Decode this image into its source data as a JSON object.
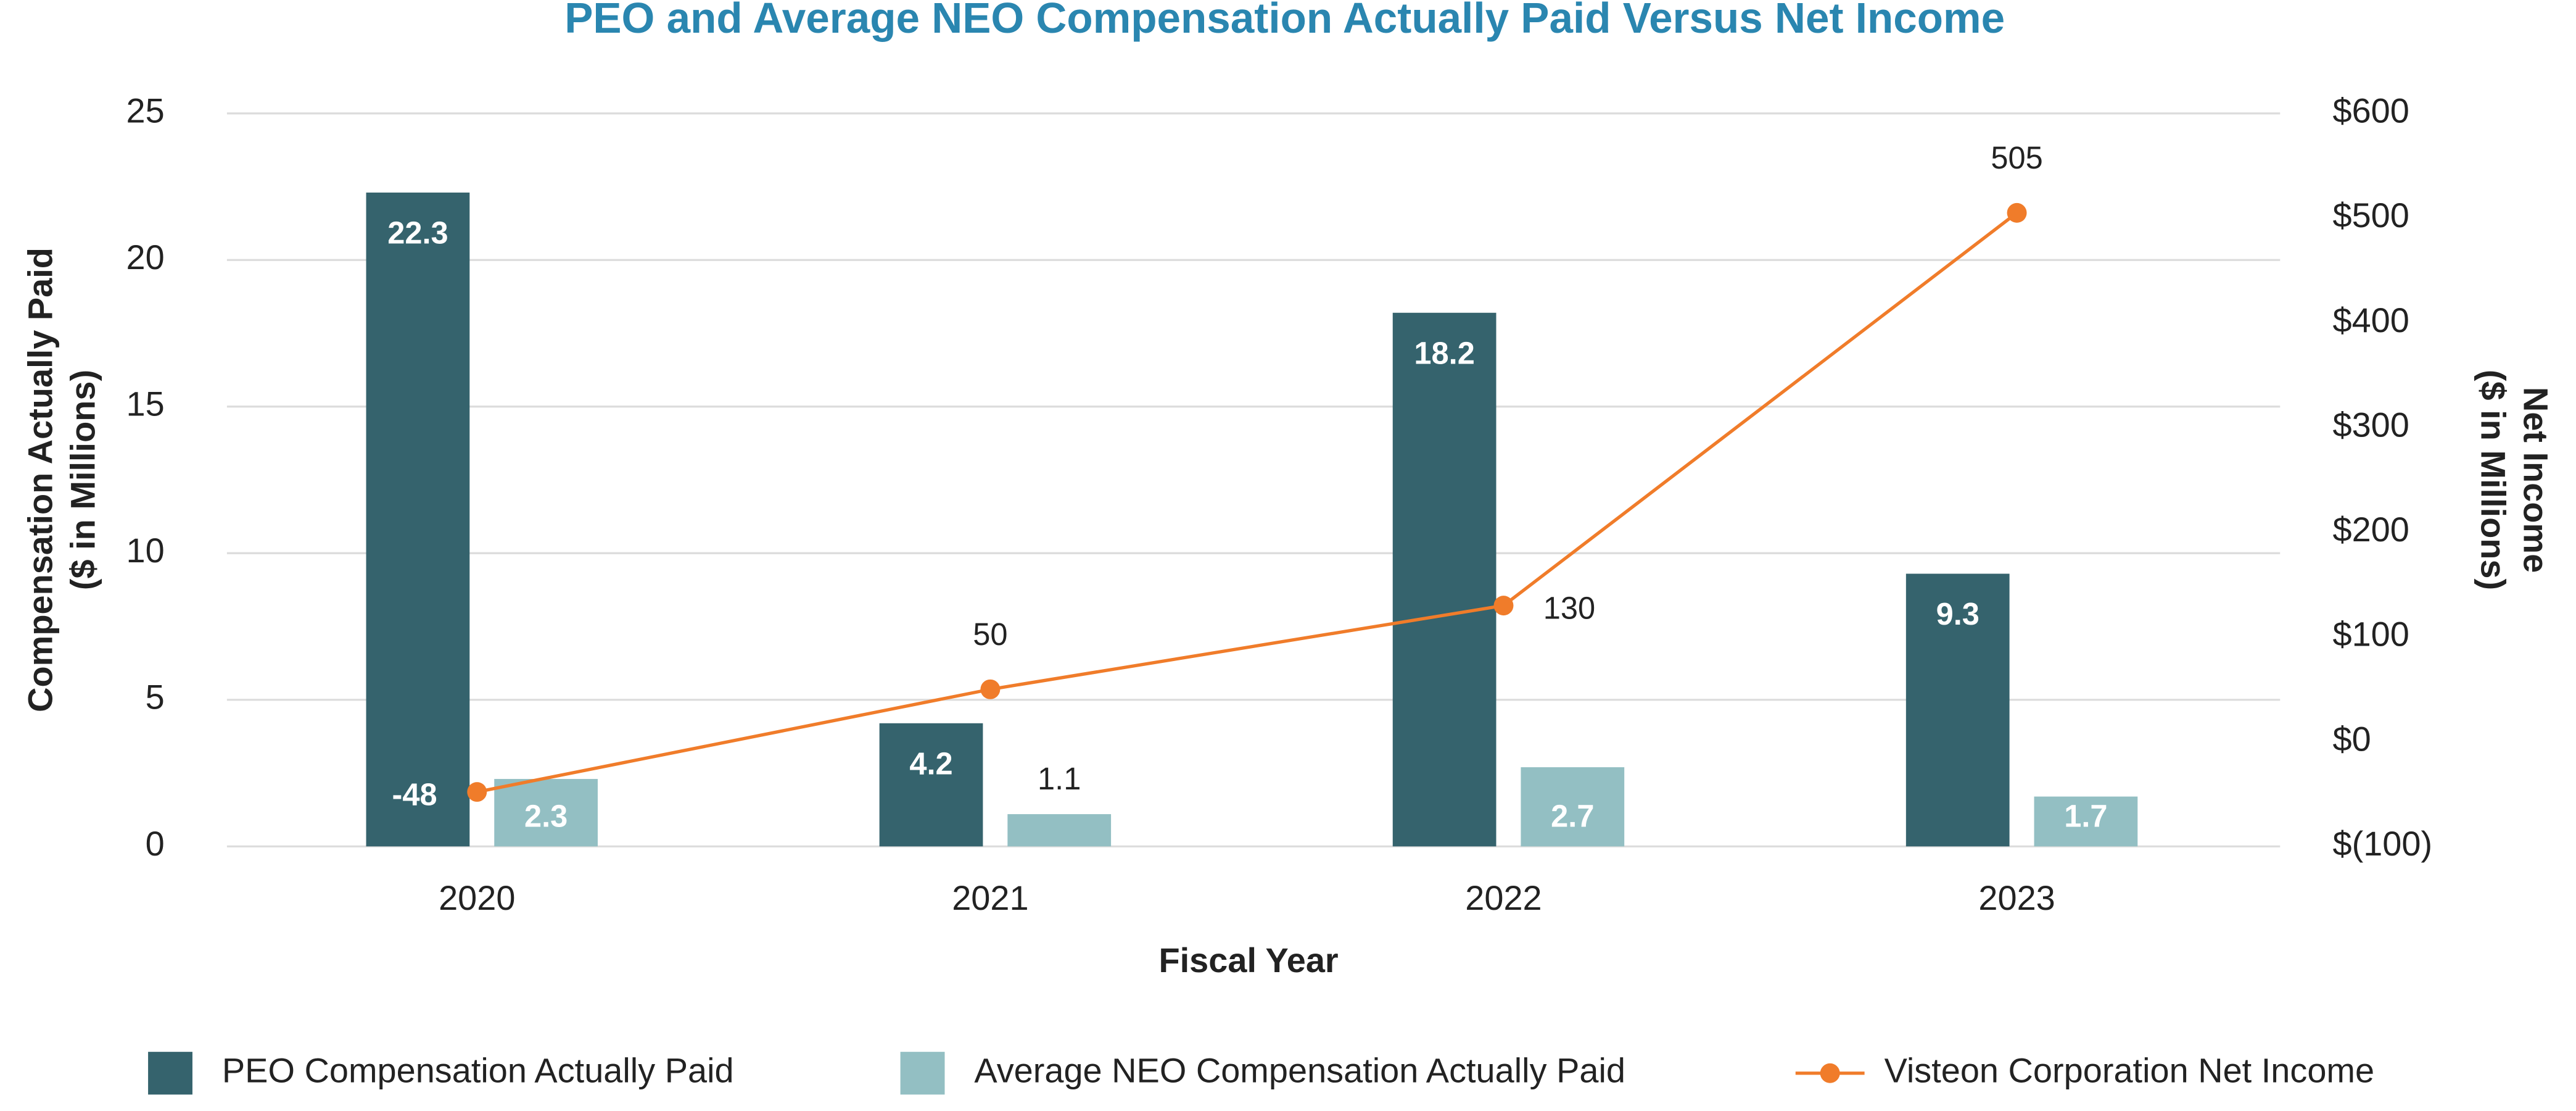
{
  "chart_data": {
    "type": "bar_line",
    "title": "PEO and Average NEO Compensation Actually Paid Versus Net Income",
    "x_label": "Fiscal Year",
    "y_label": [
      "Compensation Actually Paid",
      "($ in Millions)"
    ],
    "y2_label": [
      "Net Income",
      "($ in Millions)"
    ],
    "categories": [
      "2020",
      "2021",
      "2022",
      "2023"
    ],
    "ylim": [
      0,
      25
    ],
    "yticks": [
      0,
      5,
      10,
      15,
      20,
      25
    ],
    "y2lim": [
      -100,
      600
    ],
    "y2ticks": [
      {
        "value": -100,
        "label": "$(100)"
      },
      {
        "value": 0,
        "label": "$0"
      },
      {
        "value": 100,
        "label": "$100"
      },
      {
        "value": 200,
        "label": "$200"
      },
      {
        "value": 300,
        "label": "$300"
      },
      {
        "value": 400,
        "label": "$400"
      },
      {
        "value": 500,
        "label": "$500"
      },
      {
        "value": 600,
        "label": "$600"
      }
    ],
    "grid": true,
    "legend": "bottom",
    "series": [
      {
        "name": "PEO Compensation Actually Paid",
        "type": "bar",
        "color": "#35636d",
        "values": [
          22.3,
          4.2,
          18.2,
          9.3
        ]
      },
      {
        "name": "Average NEO Compensation Actually Paid",
        "type": "bar",
        "color": "#93bfc3",
        "values": [
          2.3,
          1.1,
          2.7,
          1.7
        ]
      },
      {
        "name": "Visteon Corporation Net Income",
        "type": "line",
        "axis": "y2",
        "color": "#f07c2a",
        "values": [
          -48,
          50,
          130,
          505
        ]
      }
    ]
  }
}
